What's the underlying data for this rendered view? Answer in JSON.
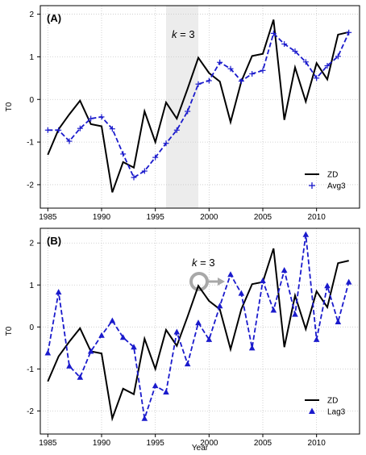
{
  "xlabel": "Year",
  "colors": {
    "zd": "#000000",
    "avg": "#1a1acc",
    "lag": "#1a1acc",
    "shade": "#ececec",
    "grid": "#c8c8c8",
    "arrow": "#a8a8a8"
  },
  "chart_data": [
    {
      "type": "line",
      "panel_label": "(A)",
      "ylabel": "T0",
      "annotation": {
        "prefix": "k",
        "suffix": " = 3"
      },
      "shade_range": [
        1996,
        1999
      ],
      "xlim": [
        1984.3,
        2014
      ],
      "ylim": [
        -2.55,
        2.2
      ],
      "xticks": [
        "1985",
        "1990",
        "1995",
        "2000",
        "2005",
        "2010"
      ],
      "yticks": [
        "-2",
        "-1",
        "0",
        "1",
        "2"
      ],
      "x": [
        1985,
        1986,
        1987,
        1988,
        1989,
        1990,
        1991,
        1992,
        1993,
        1994,
        1995,
        1996,
        1997,
        1998,
        1999,
        2000,
        2001,
        2002,
        2003,
        2004,
        2005,
        2006,
        2007,
        2008,
        2009,
        2010,
        2011,
        2012,
        2013
      ],
      "series": [
        {
          "name": "ZD",
          "marker": "none",
          "values": [
            -1.3,
            -0.7,
            -0.35,
            -0.03,
            -0.58,
            -0.63,
            -2.18,
            -1.47,
            -1.6,
            -0.28,
            -1.0,
            -0.07,
            -0.45,
            0.25,
            0.98,
            0.62,
            0.42,
            -0.53,
            0.42,
            1.02,
            1.07,
            1.87,
            -0.48,
            0.75,
            -0.05,
            0.85,
            0.47,
            1.52,
            1.58
          ]
        },
        {
          "name": "Avg3",
          "marker": "plus",
          "values": [
            -0.72,
            -0.72,
            -0.98,
            -0.68,
            -0.45,
            -0.41,
            -0.69,
            -1.28,
            -1.83,
            -1.68,
            -1.36,
            -1.03,
            -0.72,
            -0.28,
            0.36,
            0.44,
            0.87,
            0.72,
            0.43,
            0.6,
            0.68,
            1.55,
            1.3,
            1.13,
            0.88,
            0.5,
            0.79,
            1.01,
            1.57
          ]
        }
      ]
    },
    {
      "type": "line",
      "panel_label": "(B)",
      "ylabel": "T0",
      "annotation": {
        "prefix": "k",
        "suffix": " = 3"
      },
      "xlim": [
        1984.3,
        2014
      ],
      "ylim": [
        -2.55,
        2.35
      ],
      "xticks": [
        "1985",
        "1990",
        "1995",
        "2000",
        "2005",
        "2010"
      ],
      "yticks": [
        "-2",
        "-1",
        "0",
        "1",
        "2"
      ],
      "x": [
        1985,
        1986,
        1987,
        1988,
        1989,
        1990,
        1991,
        1992,
        1993,
        1994,
        1995,
        1996,
        1997,
        1998,
        1999,
        2000,
        2001,
        2002,
        2003,
        2004,
        2005,
        2006,
        2007,
        2008,
        2009,
        2010,
        2011,
        2012,
        2013
      ],
      "series": [
        {
          "name": "ZD",
          "marker": "none",
          "values": [
            -1.3,
            -0.7,
            -0.35,
            -0.03,
            -0.58,
            -0.63,
            -2.18,
            -1.47,
            -1.6,
            -0.28,
            -1.0,
            -0.07,
            -0.45,
            0.25,
            0.98,
            0.62,
            0.42,
            -0.53,
            0.42,
            1.02,
            1.07,
            1.87,
            -0.48,
            0.75,
            -0.05,
            0.85,
            0.47,
            1.52,
            1.58
          ]
        },
        {
          "name": "Lag3",
          "marker": "triangle",
          "values": [
            -0.62,
            0.83,
            -0.93,
            -1.2,
            -0.58,
            -0.2,
            0.15,
            -0.25,
            -0.48,
            -2.18,
            -1.4,
            -1.55,
            -0.12,
            -0.88,
            0.1,
            -0.3,
            0.5,
            1.25,
            0.8,
            -0.5,
            1.1,
            0.4,
            1.35,
            0.3,
            2.2,
            -0.3,
            0.98,
            0.12,
            1.07
          ]
        }
      ]
    }
  ]
}
